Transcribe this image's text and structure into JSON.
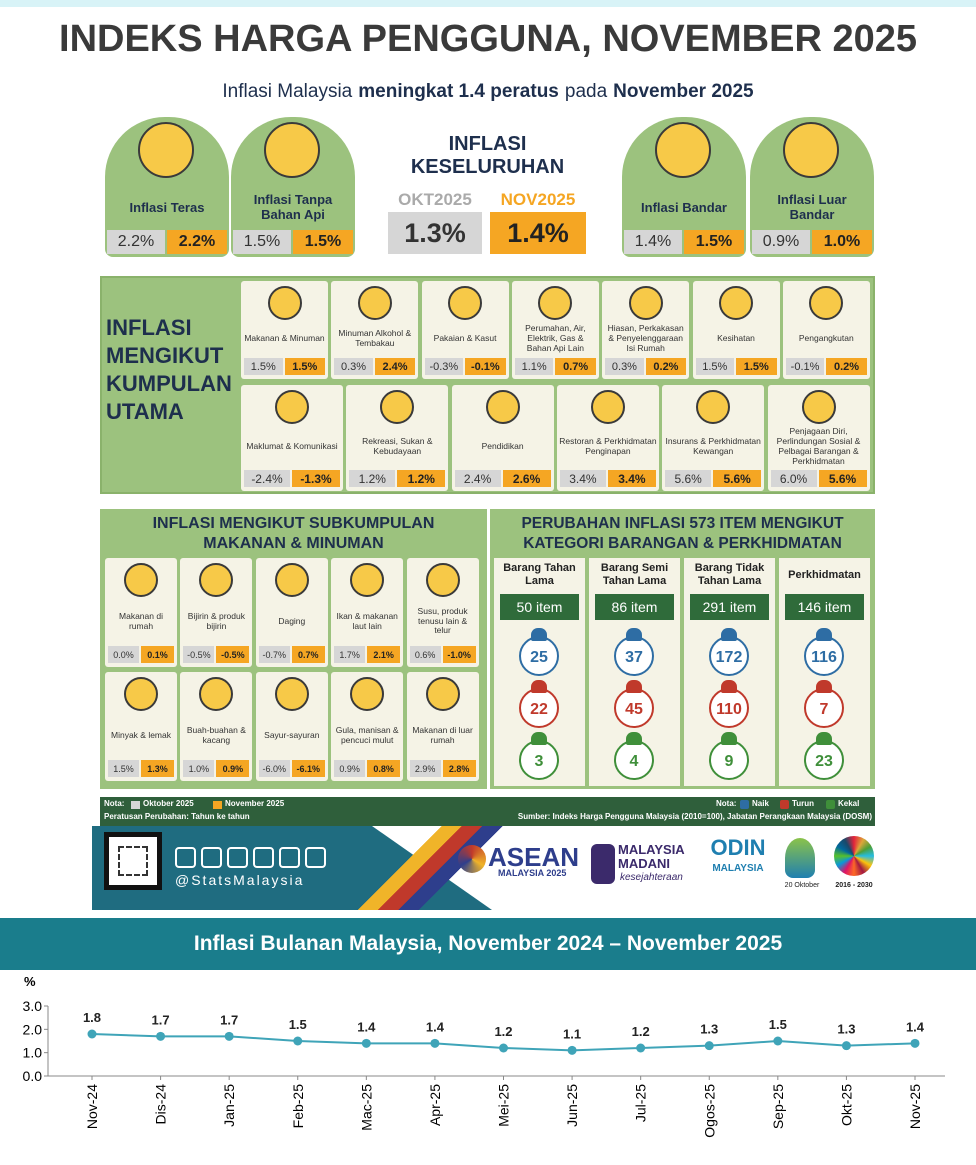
{
  "header": {
    "title": "INDEKS HARGA PENGGUNA, NOVEMBER 2025",
    "subtitle": [
      "Inflasi Malaysia",
      "meningkat 1.4 peratus",
      "pada",
      "November 2025"
    ]
  },
  "top_cards": [
    {
      "label": "Inflasi Teras",
      "oct": "2.2%",
      "nov": "2.2%"
    },
    {
      "label": "Inflasi Tanpa Bahan Api",
      "oct": "1.5%",
      "nov": "1.5%"
    },
    {
      "label": "Inflasi Bandar",
      "oct": "1.4%",
      "nov": "1.5%"
    },
    {
      "label": "Inflasi Luar Bandar",
      "oct": "0.9%",
      "nov": "1.0%"
    }
  ],
  "overall": {
    "title": "INFLASI KESELURUHAN",
    "oct_label": "OKT2025",
    "nov_label": "NOV2025",
    "oct": "1.3%",
    "nov": "1.4%"
  },
  "groups": {
    "title": "INFLASI MENGIKUT KUMPULAN UTAMA",
    "items": [
      {
        "label": "Makanan & Minuman",
        "oct": "1.5%",
        "nov": "1.5%"
      },
      {
        "label": "Minuman Alkohol & Tembakau",
        "oct": "0.3%",
        "nov": "2.4%"
      },
      {
        "label": "Pakaian & Kasut",
        "oct": "-0.3%",
        "nov": "-0.1%"
      },
      {
        "label": "Perumahan, Air, Elektrik, Gas & Bahan Api Lain",
        "oct": "1.1%",
        "nov": "0.7%"
      },
      {
        "label": "Hiasan, Perkakasan & Penyelenggaraan Isi Rumah",
        "oct": "0.3%",
        "nov": "0.2%"
      },
      {
        "label": "Kesihatan",
        "oct": "1.5%",
        "nov": "1.5%"
      },
      {
        "label": "Pengangkutan",
        "oct": "-0.1%",
        "nov": "0.2%"
      },
      {
        "label": "Maklumat & Komunikasi",
        "oct": "-2.4%",
        "nov": "-1.3%"
      },
      {
        "label": "Rekreasi, Sukan & Kebudayaan",
        "oct": "1.2%",
        "nov": "1.2%"
      },
      {
        "label": "Pendidikan",
        "oct": "2.4%",
        "nov": "2.6%"
      },
      {
        "label": "Restoran & Perkhidmatan Penginapan",
        "oct": "3.4%",
        "nov": "3.4%"
      },
      {
        "label": "Insurans & Perkhidmatan Kewangan",
        "oct": "5.6%",
        "nov": "5.6%"
      },
      {
        "label": "Penjagaan Diri, Perlindungan Sosial & Pelbagai Barangan & Perkhidmatan",
        "oct": "6.0%",
        "nov": "5.6%"
      }
    ]
  },
  "subgroups": {
    "title": "INFLASI MENGIKUT SUBKUMPULAN MAKANAN & MINUMAN",
    "items": [
      {
        "label": "Makanan di rumah",
        "oct": "0.0%",
        "nov": "0.1%"
      },
      {
        "label": "Bijirin & produk bijirin",
        "oct": "-0.5%",
        "nov": "-0.5%"
      },
      {
        "label": "Daging",
        "oct": "-0.7%",
        "nov": "0.7%"
      },
      {
        "label": "Ikan & makanan laut lain",
        "oct": "1.7%",
        "nov": "2.1%"
      },
      {
        "label": "Susu, produk tenusu lain & telur",
        "oct": "0.6%",
        "nov": "-1.0%"
      },
      {
        "label": "Minyak & lemak",
        "oct": "1.5%",
        "nov": "1.3%"
      },
      {
        "label": "Buah-buahan & kacang",
        "oct": "1.0%",
        "nov": "0.9%"
      },
      {
        "label": "Sayur-sayuran",
        "oct": "-6.0%",
        "nov": "-6.1%"
      },
      {
        "label": "Gula, manisan & pencuci mulut",
        "oct": "0.9%",
        "nov": "0.8%"
      },
      {
        "label": "Makanan di luar rumah",
        "oct": "2.9%",
        "nov": "2.8%"
      }
    ]
  },
  "items573": {
    "title": "PERUBAHAN INFLASI 573 ITEM MENGIKUT KATEGORI BARANGAN & PERKHIDMATAN",
    "categories": [
      {
        "name": "Barang Tahan Lama",
        "count": "50 item",
        "naik": 25,
        "turun": 22,
        "kekal": 3
      },
      {
        "name": "Barang Semi Tahan Lama",
        "count": "86 item",
        "naik": 37,
        "turun": 45,
        "kekal": 4
      },
      {
        "name": "Barang Tidak Tahan Lama",
        "count": "291 item",
        "naik": 172,
        "turun": 110,
        "kekal": 9
      },
      {
        "name": "Perkhidmatan",
        "count": "146 item",
        "naik": 116,
        "turun": 7,
        "kekal": 23
      }
    ]
  },
  "notes": {
    "nota": "Nota:",
    "oct": "Oktober 2025",
    "nov": "November 2025",
    "basis": "Peratusan Perubahan: Tahun ke tahun",
    "nota_right": "Nota:",
    "naik": "Naik",
    "turun": "Turun",
    "kekal": "Kekal",
    "source": "Sumber: Indeks Harga Pengguna Malaysia (2010=100), Jabatan Perangkaan Malaysia (DOSM)"
  },
  "footer": {
    "handle": "@StatsMalaysia",
    "asean": "ASEAN",
    "asean_sub": "MALAYSIA 2025",
    "madani": "MALAYSIA",
    "madani2": "MADANI",
    "madani3": "kesejahteraan",
    "odin": "ODIN",
    "odin_sub": "MALAYSIA",
    "date": "20 Oktober",
    "sdg": "2016 - 2030"
  },
  "chart_data": {
    "type": "line",
    "title": "Inflasi Bulanan Malaysia, November 2024 – November 2025",
    "y_label": "%",
    "categories": [
      "Nov-24",
      "Dis-24",
      "Jan-25",
      "Feb-25",
      "Mac-25",
      "Apr-25",
      "Mei-25",
      "Jun-25",
      "Jul-25",
      "Ogos-25",
      "Sep-25",
      "Okt-25",
      "Nov-25"
    ],
    "values": [
      1.8,
      1.7,
      1.7,
      1.5,
      1.4,
      1.4,
      1.2,
      1.1,
      1.2,
      1.3,
      1.5,
      1.3,
      1.4
    ],
    "color": "#3fa4b8",
    "ylim": [
      0,
      3
    ],
    "yticks": [
      {
        "value": 0,
        "label": "0.0"
      },
      {
        "value": 1,
        "label": "1.0"
      },
      {
        "value": 2,
        "label": "2.0"
      },
      {
        "value": 3,
        "label": "3.0"
      }
    ]
  }
}
